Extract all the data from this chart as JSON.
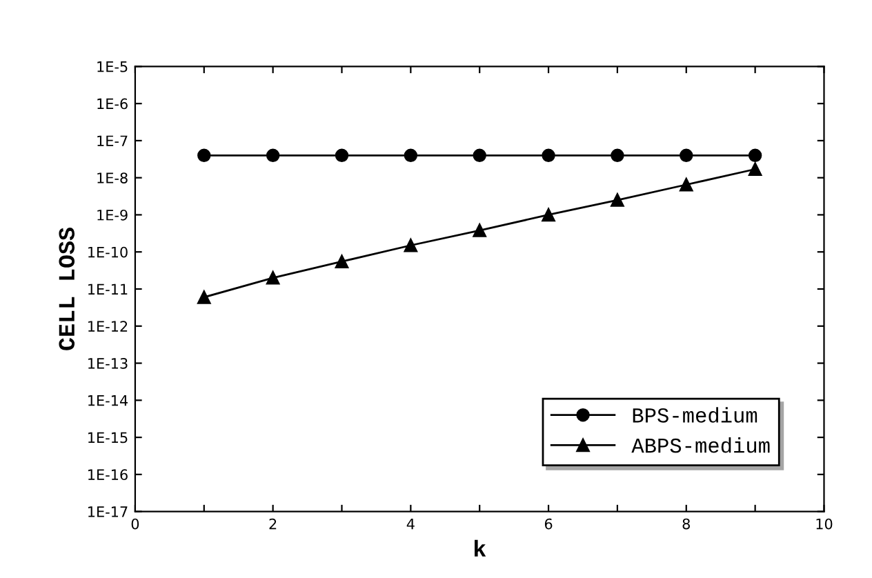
{
  "chart_data": {
    "type": "line",
    "xlabel": "k",
    "ylabel": "CELL LOSS",
    "xlim": [
      0,
      10
    ],
    "xticks": [
      0,
      {
        "value": 1,
        "label": null
      },
      2,
      {
        "value": 3,
        "label": null
      },
      4,
      {
        "value": 5,
        "label": null
      },
      6,
      {
        "value": 7,
        "label": null
      },
      8,
      {
        "value": 9,
        "label": null
      },
      10
    ],
    "ylim": [
      1e-17,
      1e-05
    ],
    "log": "y",
    "yticks": [
      {
        "value": 1e-17,
        "label": "1E-17"
      },
      {
        "value": 1e-16,
        "label": "1E-16"
      },
      {
        "value": 1e-15,
        "label": "1E-15"
      },
      {
        "value": 1e-14,
        "label": "1E-14"
      },
      {
        "value": 1e-13,
        "label": "1E-13"
      },
      {
        "value": 1e-12,
        "label": "1E-12"
      },
      {
        "value": 1e-11,
        "label": "1E-11"
      },
      {
        "value": 1e-10,
        "label": "1E-10"
      },
      {
        "value": 1e-09,
        "label": "1E-9"
      },
      {
        "value": 1e-08,
        "label": "1E-8"
      },
      {
        "value": 1e-07,
        "label": "1E-7"
      },
      {
        "value": 1e-06,
        "label": "1E-6"
      },
      {
        "value": 1e-05,
        "label": "1E-5"
      }
    ],
    "x": [
      1,
      2,
      3,
      4,
      5,
      6,
      7,
      8,
      9
    ],
    "series": [
      {
        "name": "BPS-medium",
        "color": "#000000",
        "marker": "circle",
        "values": [
          4e-08,
          4e-08,
          4e-08,
          4e-08,
          4e-08,
          4e-08,
          4e-08,
          4e-08,
          4e-08
        ]
      },
      {
        "name": "ABPS-medium",
        "color": "#000000",
        "marker": "triangle",
        "values": [
          6e-12,
          2e-11,
          5.5e-11,
          1.5e-10,
          3.8e-10,
          1e-09,
          2.5e-09,
          6.5e-09,
          1.7e-08
        ]
      }
    ],
    "legend": "bottom right",
    "grid": false,
    "line_style": "solid"
  }
}
